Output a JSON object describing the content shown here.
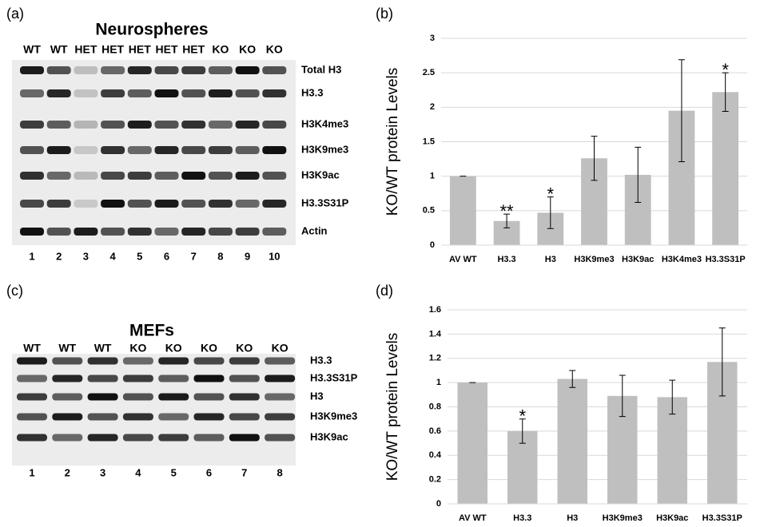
{
  "panel_labels": [
    "(a)",
    "(b)",
    "(c)",
    "(d)"
  ],
  "blots": [
    {
      "title": "Neurospheres",
      "lanes": [
        "WT",
        "WT",
        "HET",
        "HET",
        "HET",
        "HET",
        "HET",
        "KO",
        "KO",
        "KO"
      ],
      "lane_numbers": [
        "1",
        "2",
        "3",
        "4",
        "5",
        "6",
        "7",
        "8",
        "9",
        "10"
      ],
      "rows": [
        "Total H3",
        "H3.3",
        "H3K4me3",
        "H3K9me3",
        "H3K9ac",
        "H3.3S31P",
        "Actin"
      ]
    },
    {
      "title": "MEFs",
      "lanes": [
        "WT",
        "WT",
        "WT",
        "KO",
        "KO",
        "KO",
        "KO",
        "KO"
      ],
      "lane_numbers": [
        "1",
        "2",
        "3",
        "4",
        "5",
        "6",
        "7",
        "8"
      ],
      "rows": [
        "H3.3",
        "H3.3S31P",
        "H3",
        "H3K9me3",
        "H3K9ac"
      ]
    }
  ],
  "chart_data": [
    {
      "type": "bar",
      "y_label": "KO/WT protein Levels",
      "categories": [
        "AV WT",
        "H3.3",
        "H3",
        "H3K9me3",
        "H3K9ac",
        "H3K4me3",
        "H3.3S31P"
      ],
      "values": [
        1,
        0.35,
        0.47,
        1.26,
        1.02,
        1.95,
        2.22
      ],
      "errors": [
        0,
        0.1,
        0.23,
        0.32,
        0.4,
        0.74,
        0.28
      ],
      "significance": [
        null,
        "**",
        "*",
        null,
        null,
        null,
        "*"
      ],
      "color": "#bfbfbf",
      "ylim": [
        0,
        3
      ],
      "yticks": [
        0,
        0.5,
        1,
        1.5,
        2,
        2.5,
        3
      ],
      "grid": true
    },
    {
      "type": "bar",
      "y_label": "KO/WT protein Levels",
      "categories": [
        "AV WT",
        "H3.3",
        "H3",
        "H3K9me3",
        "H3K9ac",
        "H3.3S31P"
      ],
      "values": [
        1,
        0.6,
        1.03,
        0.89,
        0.88,
        1.17
      ],
      "errors": [
        0,
        0.1,
        0.07,
        0.17,
        0.14,
        0.28
      ],
      "significance": [
        null,
        "*",
        null,
        null,
        null,
        null
      ],
      "color": "#bfbfbf",
      "ylim": [
        0,
        1.6
      ],
      "yticks": [
        0,
        0.2,
        0.4,
        0.6,
        0.8,
        1,
        1.2,
        1.4,
        1.6
      ],
      "grid": true
    }
  ]
}
